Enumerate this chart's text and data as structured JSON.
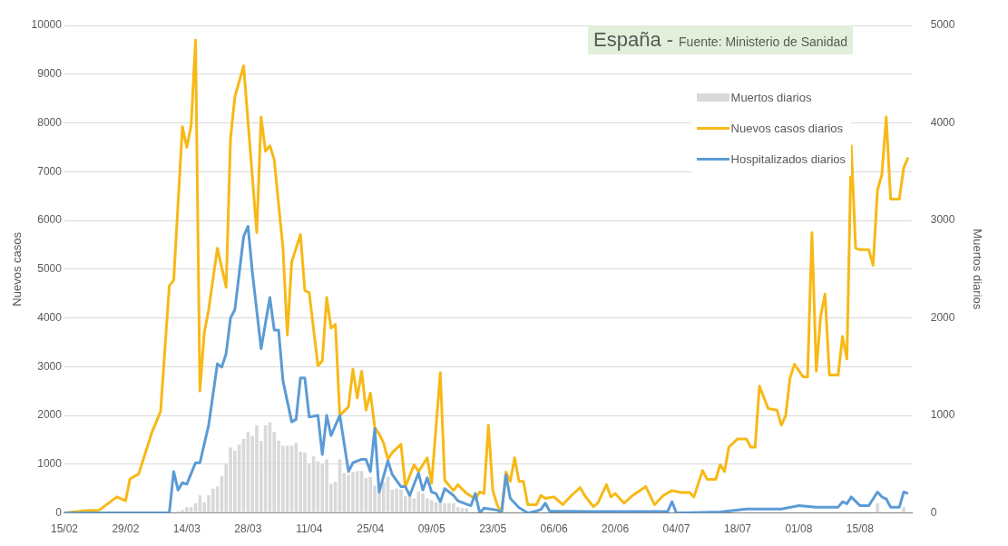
{
  "chart_data": {
    "type": "line",
    "title": "España -",
    "subtitle": "Fuente:  Ministerio de Sanidad",
    "ylabel": "Nuevos casos",
    "y2label": "Muertos diarios",
    "xlim": [
      "--02-15",
      "--08-27"
    ],
    "xticks": [
      {
        "value": "--02-15",
        "label": "15/02"
      },
      {
        "value": "--02-29",
        "label": "29/02"
      },
      {
        "value": "--03-14",
        "label": "14/03"
      },
      {
        "value": "--03-28",
        "label": "28/03"
      },
      {
        "value": "--04-11",
        "label": "11/04"
      },
      {
        "value": "--04-25",
        "label": "25/04"
      },
      {
        "value": "--05-09",
        "label": "09/05"
      },
      {
        "value": "--05-23",
        "label": "23/05"
      },
      {
        "value": "--06-06",
        "label": "06/06"
      },
      {
        "value": "--06-20",
        "label": "20/06"
      },
      {
        "value": "--07-04",
        "label": "04/07"
      },
      {
        "value": "--07-18",
        "label": "18/07"
      },
      {
        "value": "--08-01",
        "label": "01/08"
      },
      {
        "value": "--08-15",
        "label": "15/08"
      }
    ],
    "ylim": [
      0,
      10000
    ],
    "yticks": [
      0,
      1000,
      2000,
      3000,
      4000,
      5000,
      6000,
      7000,
      8000,
      9000,
      10000
    ],
    "y2lim": [
      0,
      5000
    ],
    "y2ticks": [
      0,
      1000,
      2000,
      3000,
      4000,
      5000
    ],
    "grid": "y",
    "legend": "top right",
    "marker": "none",
    "line_style": "solid",
    "series": [
      {
        "name": "Muertos diarios",
        "type": "bar",
        "axis": "y2",
        "color": "#d9d9d9",
        "x": [
          "--03-12",
          "--03-13",
          "--03-14",
          "--03-15",
          "--03-16",
          "--03-17",
          "--03-18",
          "--03-19",
          "--03-20",
          "--03-21",
          "--03-22",
          "--03-23",
          "--03-24",
          "--03-25",
          "--03-26",
          "--03-27",
          "--03-28",
          "--03-29",
          "--03-30",
          "--03-31",
          "--04-01",
          "--04-02",
          "--04-03",
          "--04-04",
          "--04-05",
          "--04-06",
          "--04-07",
          "--04-08",
          "--04-09",
          "--04-10",
          "--04-11",
          "--04-12",
          "--04-13",
          "--04-14",
          "--04-15",
          "--04-16",
          "--04-17",
          "--04-18",
          "--04-19",
          "--04-20",
          "--04-21",
          "--04-22",
          "--04-23",
          "--04-24",
          "--04-25",
          "--04-26",
          "--04-27",
          "--04-28",
          "--04-29",
          "--04-30",
          "--05-01",
          "--05-02",
          "--05-03",
          "--05-04",
          "--05-05",
          "--05-06",
          "--05-07",
          "--05-08",
          "--05-09",
          "--05-10",
          "--05-11",
          "--05-12",
          "--05-13",
          "--05-14",
          "--05-15",
          "--05-16",
          "--05-17",
          "--08-19",
          "--08-25"
        ],
        "values": [
          20,
          30,
          60,
          60,
          100,
          180,
          110,
          180,
          250,
          270,
          380,
          510,
          670,
          640,
          700,
          760,
          830,
          790,
          900,
          740,
          900,
          930,
          830,
          740,
          690,
          690,
          690,
          720,
          630,
          620,
          510,
          580,
          530,
          500,
          550,
          300,
          320,
          550,
          410,
          390,
          420,
          430,
          430,
          360,
          370,
          280,
          270,
          320,
          370,
          240,
          250,
          240,
          170,
          190,
          150,
          220,
          200,
          150,
          130,
          110,
          100,
          100,
          100,
          100,
          60,
          50,
          50,
          100,
          60
        ]
      },
      {
        "name": "Nuevos casos diarios",
        "color": "#f7b916",
        "x": [
          "--02-15",
          "--02-20",
          "--02-23",
          "--02-27",
          "--02-29",
          "--03-01",
          "--03-03",
          "--03-06",
          "--03-08",
          "--03-10",
          "--03-11",
          "--03-13",
          "--03-14",
          "--03-15",
          "--03-16",
          "--03-17",
          "--03-18",
          "--03-19",
          "--03-21",
          "--03-23",
          "--03-24",
          "--03-25",
          "--03-27",
          "--03-30",
          "--03-31",
          "--04-01",
          "--04-02",
          "--04-03",
          "--04-05",
          "--04-06",
          "--04-07",
          "--04-09",
          "--04-10",
          "--04-11",
          "--04-13",
          "--04-14",
          "--04-15",
          "--04-16",
          "--04-17",
          "--04-18",
          "--04-20",
          "--04-21",
          "--04-22",
          "--04-23",
          "--04-24",
          "--04-25",
          "--04-26",
          "--04-27",
          "--04-28",
          "--04-29",
          "--04-30",
          "--05-02",
          "--05-03",
          "--05-05",
          "--05-06",
          "--05-08",
          "--05-09",
          "--05-11",
          "--05-12",
          "--05-14",
          "--05-15",
          "--05-17",
          "--05-19",
          "--05-20",
          "--05-21",
          "--05-22",
          "--05-23",
          "--05-24",
          "--05-25",
          "--05-26",
          "--05-27",
          "--05-28",
          "--05-29",
          "--05-30",
          "--05-31",
          "--06-02",
          "--06-03",
          "--06-04",
          "--06-06",
          "--06-08",
          "--06-10",
          "--06-12",
          "--06-13",
          "--06-15",
          "--06-16",
          "--06-18",
          "--06-19",
          "--06-20",
          "--06-22",
          "--06-24",
          "--06-25",
          "--06-27",
          "--06-29",
          "--07-01",
          "--07-03",
          "--07-05",
          "--07-07",
          "--07-08",
          "--07-10",
          "--07-11",
          "--07-13",
          "--07-14",
          "--07-15",
          "--07-16",
          "--07-18",
          "--07-20",
          "--07-21",
          "--07-22",
          "--07-23",
          "--07-25",
          "--07-27",
          "--07-28",
          "--07-29",
          "--07-30",
          "--07-31",
          "--08-02",
          "--08-03",
          "--08-04",
          "--08-05",
          "--08-06",
          "--08-07",
          "--08-08",
          "--08-10",
          "--08-11",
          "--08-12",
          "--08-13",
          "--08-14",
          "--08-15",
          "--08-17",
          "--08-18",
          "--08-19",
          "--08-20",
          "--08-21",
          "--08-22",
          "--08-24",
          "--08-25",
          "--08-26"
        ],
        "values": [
          0,
          50,
          60,
          330,
          250,
          700,
          800,
          1650,
          2080,
          4660,
          4770,
          7920,
          7500,
          7950,
          9700,
          2500,
          3700,
          4170,
          5430,
          4630,
          7670,
          8540,
          9170,
          5750,
          8120,
          7420,
          7530,
          7250,
          5430,
          3650,
          5150,
          5710,
          4560,
          4520,
          3020,
          3120,
          4420,
          3790,
          3870,
          2000,
          2180,
          2950,
          2360,
          2910,
          2110,
          2460,
          1760,
          1620,
          1440,
          1100,
          1240,
          1410,
          540,
          990,
          850,
          1130,
          610,
          2880,
          670,
          460,
          580,
          400,
          290,
          430,
          400,
          1800,
          460,
          170,
          0,
          840,
          650,
          1130,
          650,
          650,
          170,
          170,
          360,
          300,
          330,
          170,
          360,
          520,
          360,
          130,
          200,
          580,
          330,
          400,
          200,
          360,
          420,
          540,
          170,
          360,
          460,
          420,
          420,
          330,
          870,
          690,
          690,
          990,
          850,
          1350,
          1520,
          1520,
          1350,
          1350,
          2600,
          2140,
          2110,
          1800,
          2000,
          2770,
          3050,
          2790,
          2790,
          5750,
          2910,
          4040,
          4490,
          2830,
          2830,
          3620,
          3160,
          7530,
          5430,
          5400,
          5400,
          5080,
          6620,
          6940,
          8120,
          6440,
          6440,
          7080,
          7290
        ]
      },
      {
        "name": "Hospitalizados diarios",
        "color": "#5b9bd5",
        "x": [
          "--02-15",
          "--03-10",
          "--03-11",
          "--03-12",
          "--03-13",
          "--03-14",
          "--03-16",
          "--03-17",
          "--03-19",
          "--03-21",
          "--03-22",
          "--03-23",
          "--03-24",
          "--03-25",
          "--03-27",
          "--03-28",
          "--03-29",
          "--03-31",
          "--04-02",
          "--04-03",
          "--04-04",
          "--04-05",
          "--04-07",
          "--04-08",
          "--04-09",
          "--04-10",
          "--04-11",
          "--04-13",
          "--04-14",
          "--04-15",
          "--04-16",
          "--04-18",
          "--04-20",
          "--04-21",
          "--04-23",
          "--04-24",
          "--04-25",
          "--04-26",
          "--04-27",
          "--04-29",
          "--04-30",
          "--05-02",
          "--05-03",
          "--05-04",
          "--05-06",
          "--05-07",
          "--05-08",
          "--05-09",
          "--05-10",
          "--05-11",
          "--05-12",
          "--05-14",
          "--05-15",
          "--05-17",
          "--05-18",
          "--05-19",
          "--05-20",
          "--05-21",
          "--05-24",
          "--05-25",
          "--05-26",
          "--05-27",
          "--05-29",
          "--05-31",
          "--06-02",
          "--06-03",
          "--06-04",
          "--06-05",
          "--06-14",
          "--06-24",
          "--07-02",
          "--07-03",
          "--07-04",
          "--07-14",
          "--07-20",
          "--07-28",
          "--08-01",
          "--08-05",
          "--08-07",
          "--08-10",
          "--08-11",
          "--08-12",
          "--08-13",
          "--08-15",
          "--08-17",
          "--08-19",
          "--08-20",
          "--08-21",
          "--08-22",
          "--08-24",
          "--08-25",
          "--08-26"
        ],
        "values": [
          0,
          0,
          850,
          470,
          620,
          590,
          1030,
          1030,
          1800,
          3060,
          2990,
          3270,
          4000,
          4170,
          5670,
          5880,
          4940,
          3370,
          4420,
          3750,
          3750,
          2710,
          1870,
          1920,
          2770,
          2770,
          1970,
          2000,
          1200,
          2000,
          1590,
          2000,
          850,
          1030,
          1100,
          1100,
          850,
          1730,
          430,
          1070,
          790,
          540,
          540,
          360,
          820,
          470,
          720,
          430,
          400,
          230,
          500,
          360,
          250,
          180,
          150,
          400,
          0,
          100,
          60,
          0,
          780,
          300,
          110,
          0,
          40,
          70,
          200,
          40,
          30,
          30,
          30,
          230,
          0,
          20,
          80,
          80,
          150,
          120,
          120,
          120,
          230,
          190,
          330,
          150,
          150,
          430,
          330,
          290,
          120,
          120,
          430,
          400
        ]
      }
    ]
  }
}
